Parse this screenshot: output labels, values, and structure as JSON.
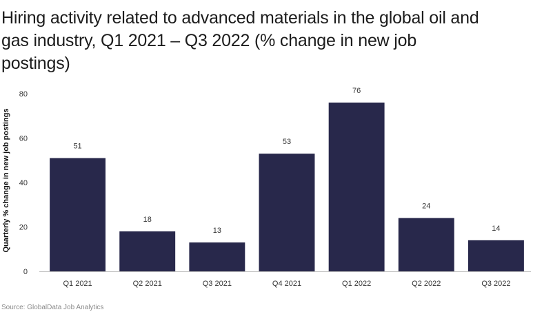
{
  "title": "Hiring activity related to advanced materials in the global oil and gas industry, Q1 2021 – Q3 2022 (% change in new job postings)",
  "source": "Source: GlobalData Job Analytics",
  "colors": {
    "bar": "#28284b",
    "axis": "#bfbfbf",
    "text": "#333333"
  },
  "chart_data": {
    "type": "bar",
    "title": "Hiring activity related to advanced materials in the global oil and gas industry, Q1 2021 – Q3 2022 (% change in new job postings)",
    "xlabel": "",
    "ylabel": "Quarterly % change in new job postings",
    "categories": [
      "Q1 2021",
      "Q2 2021",
      "Q3 2021",
      "Q4 2021",
      "Q1 2022",
      "Q2 2022",
      "Q3 2022"
    ],
    "values": [
      51,
      18,
      13,
      53,
      76,
      24,
      14
    ],
    "ylim": [
      0,
      80
    ],
    "yticks": [
      0,
      20,
      40,
      60,
      80
    ],
    "grid": false,
    "data_labels": true
  }
}
